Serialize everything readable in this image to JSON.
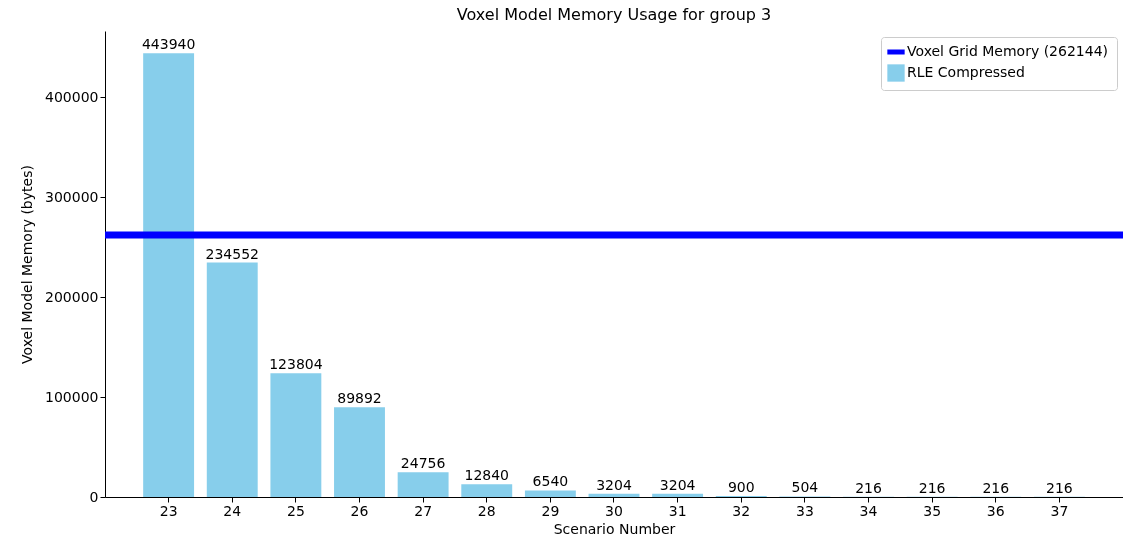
{
  "chart_data": {
    "type": "bar",
    "title": "Voxel Model Memory Usage for group 3",
    "xlabel": "Scenario Number",
    "ylabel": "Voxel Model Memory (bytes)",
    "categories": [
      "23",
      "24",
      "25",
      "26",
      "27",
      "28",
      "29",
      "30",
      "31",
      "32",
      "33",
      "34",
      "35",
      "36",
      "37"
    ],
    "series": [
      {
        "name": "RLE Compressed",
        "color": "#87ceeb",
        "values": [
          443940,
          234552,
          123804,
          89892,
          24756,
          12840,
          6540,
          3204,
          3204,
          900,
          504,
          216,
          216,
          216,
          216
        ]
      }
    ],
    "ylim": [
      0,
      466137
    ],
    "yticks": [
      0,
      100000,
      200000,
      300000,
      400000
    ],
    "ref_lines": [
      {
        "axis": "y",
        "value": 262144,
        "label": "Voxel Grid Memory (262144)",
        "color": "#0000ff"
      }
    ],
    "data_labels": true,
    "legend": "top right",
    "grid": false
  }
}
